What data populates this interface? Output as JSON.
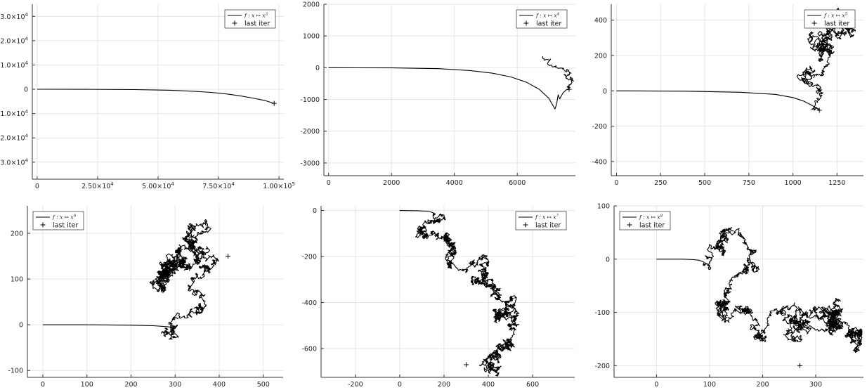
{
  "chart_data": [
    {
      "type": "line",
      "series": [
        {
          "name": "f : x ↦ x^3",
          "x": [
            0,
            20000,
            40000,
            55000,
            65000,
            72000,
            78000,
            84000,
            89000,
            94000,
            98000
          ],
          "y": [
            0,
            -20,
            -120,
            -380,
            -820,
            -1300,
            -1900,
            -2700,
            -3600,
            -4600,
            -5800
          ]
        },
        {
          "name": "last iter",
          "x": [
            98000
          ],
          "y": [
            -5800
          ],
          "marker": "+"
        }
      ],
      "xticks": [
        "0",
        "2.50×10^4",
        "5.00×10^4",
        "7.50×10^4",
        "1.00×10^5"
      ],
      "yticks": [
        "3.0×10^4",
        "2.0×10^4",
        "1.0×10^4",
        "0",
        "-1.0×10^4",
        "-2.0×10^4",
        "-3.0×10^4"
      ],
      "xlim": [
        -2000,
        102000
      ],
      "ylim": [
        -37000,
        35000
      ],
      "legend": "top-right",
      "grid": true
    },
    {
      "type": "line",
      "series": [
        {
          "name": "f : x ↦ x^4",
          "x": [
            0,
            2000,
            3500,
            4500,
            5200,
            5800,
            6300,
            6700,
            7000,
            7200,
            7250,
            7300,
            7350,
            7450,
            7550,
            7650
          ],
          "y": [
            0,
            -5,
            -30,
            -90,
            -170,
            -290,
            -460,
            -680,
            -960,
            -1300,
            -1150,
            -850,
            -980,
            -800,
            -700,
            -680
          ]
        },
        {
          "name": "last iter",
          "x": [
            7650
          ],
          "y": [
            -680
          ],
          "marker": "+"
        }
      ],
      "xticks": [
        "0",
        "2000",
        "4000",
        "6000"
      ],
      "yticks": [
        "2000",
        "1000",
        "0",
        "-1000",
        "-2000",
        "-3000"
      ],
      "xlim": [
        -150,
        7850
      ],
      "ylim": [
        -3400,
        2000
      ],
      "legend": "top-right",
      "grid": true
    },
    {
      "type": "line",
      "series": [
        {
          "name": "f : x ↦ x^5",
          "x": [
            0,
            400,
            700,
            900,
            1000,
            1060,
            1100,
            1130,
            1150
          ],
          "y": [
            0,
            -2,
            -8,
            -20,
            -38,
            -58,
            -78,
            -95,
            -110
          ]
        },
        {
          "name": "last iter",
          "x": [
            1150
          ],
          "y": [
            -110
          ],
          "marker": "+"
        }
      ],
      "xticks": [
        "0",
        "250",
        "500",
        "750",
        "1000",
        "1250"
      ],
      "yticks": [
        "400",
        "200",
        "0",
        "-200",
        "-400"
      ],
      "xlim": [
        -30,
        1400
      ],
      "ylim": [
        -480,
        490
      ],
      "legend": "top-right",
      "grid": true
    },
    {
      "type": "line",
      "series": [
        {
          "name": "f : x ↦ x^6",
          "x": [
            0,
            100,
            200,
            250,
            280,
            300
          ],
          "y": [
            0,
            0,
            -1,
            -2,
            -4,
            -6
          ]
        },
        {
          "name": "last iter",
          "x": [
            420
          ],
          "y": [
            150
          ],
          "marker": "+"
        }
      ],
      "xticks": [
        "0",
        "100",
        "200",
        "300",
        "400",
        "500"
      ],
      "yticks": [
        "200",
        "100",
        "0",
        "-100"
      ],
      "xlim": [
        -35,
        545
      ],
      "ylim": [
        -115,
        260
      ],
      "legend": "top-left",
      "grid": true
    },
    {
      "type": "line",
      "series": [
        {
          "name": "f : x ↦ x^7",
          "x": [
            0,
            80,
            120,
            140,
            150,
            155
          ],
          "y": [
            0,
            -1,
            -3,
            -6,
            -10,
            -15
          ]
        },
        {
          "name": "last iter",
          "x": [
            300
          ],
          "y": [
            -670
          ],
          "marker": "+"
        }
      ],
      "xticks": [
        "-200",
        "0",
        "200",
        "400",
        "600"
      ],
      "yticks": [
        "0",
        "-200",
        "-400",
        "-600"
      ],
      "xlim": [
        -355,
        790
      ],
      "ylim": [
        -725,
        20
      ],
      "legend": "top-right",
      "grid": true
    },
    {
      "type": "line",
      "series": [
        {
          "name": "f : x ↦ x^8",
          "x": [
            0,
            50,
            70,
            80,
            85,
            90
          ],
          "y": [
            0,
            0,
            -1,
            -2,
            -4,
            -6
          ]
        },
        {
          "name": "last iter",
          "x": [
            270
          ],
          "y": [
            -200
          ],
          "marker": "+"
        }
      ],
      "xticks": [
        "0",
        "100",
        "200",
        "300"
      ],
      "yticks": [
        "100",
        "0",
        "-100",
        "-200"
      ],
      "xlim": [
        -80,
        390
      ],
      "ylim": [
        -222,
        100
      ],
      "legend": "top-left",
      "grid": true
    }
  ]
}
